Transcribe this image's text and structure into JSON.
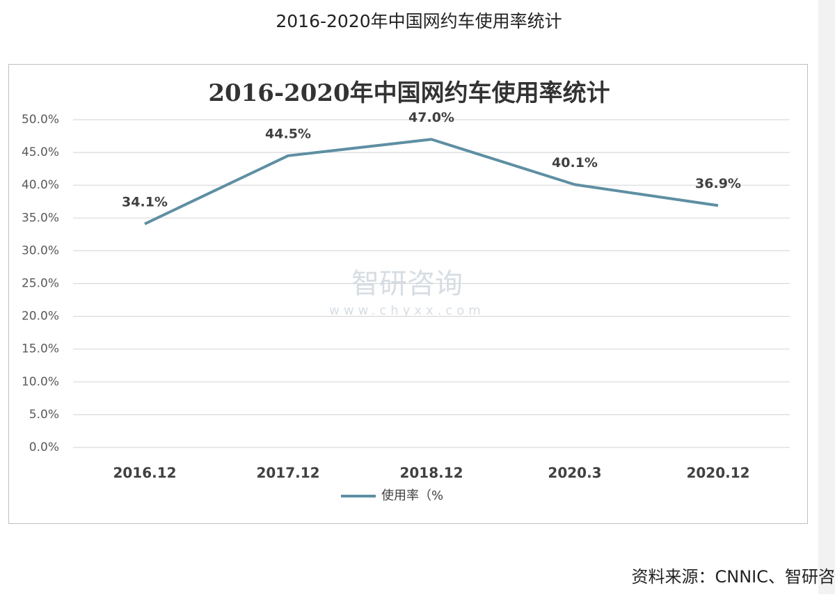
{
  "page": {
    "caption": "2016-2020年中国网约车使用率统计",
    "watermark": "智研咨询",
    "watermark_url": "www.chyxx.com",
    "source": "资料来源：CNNIC、智研咨"
  },
  "chart_data": {
    "type": "line",
    "title": "2016-2020年中国网约车使用率统计",
    "categories": [
      "2016.12",
      "2017.12",
      "2018.12",
      "2020.3",
      "2020.12"
    ],
    "series": [
      {
        "name": "使用率（%",
        "color": "#5e8fa3",
        "values": [
          34.1,
          44.5,
          47.0,
          40.1,
          36.9
        ],
        "value_labels": [
          "34.1%",
          "44.5%",
          "47.0%",
          "40.1%",
          "36.9%"
        ]
      }
    ],
    "ylim": [
      0,
      50
    ],
    "yticks": [
      {
        "value": 0,
        "label": "0.0%"
      },
      {
        "value": 5,
        "label": "5.0%"
      },
      {
        "value": 10,
        "label": "10.0%"
      },
      {
        "value": 15,
        "label": "15.0%"
      },
      {
        "value": 20,
        "label": "20.0%"
      },
      {
        "value": 25,
        "label": "25.0%"
      },
      {
        "value": 30,
        "label": "30.0%"
      },
      {
        "value": 35,
        "label": "35.0%"
      },
      {
        "value": 40,
        "label": "40.0%"
      },
      {
        "value": 45,
        "label": "45.0%"
      },
      {
        "value": 50,
        "label": "50.0%"
      }
    ],
    "grid": true,
    "legend": "bottom"
  }
}
